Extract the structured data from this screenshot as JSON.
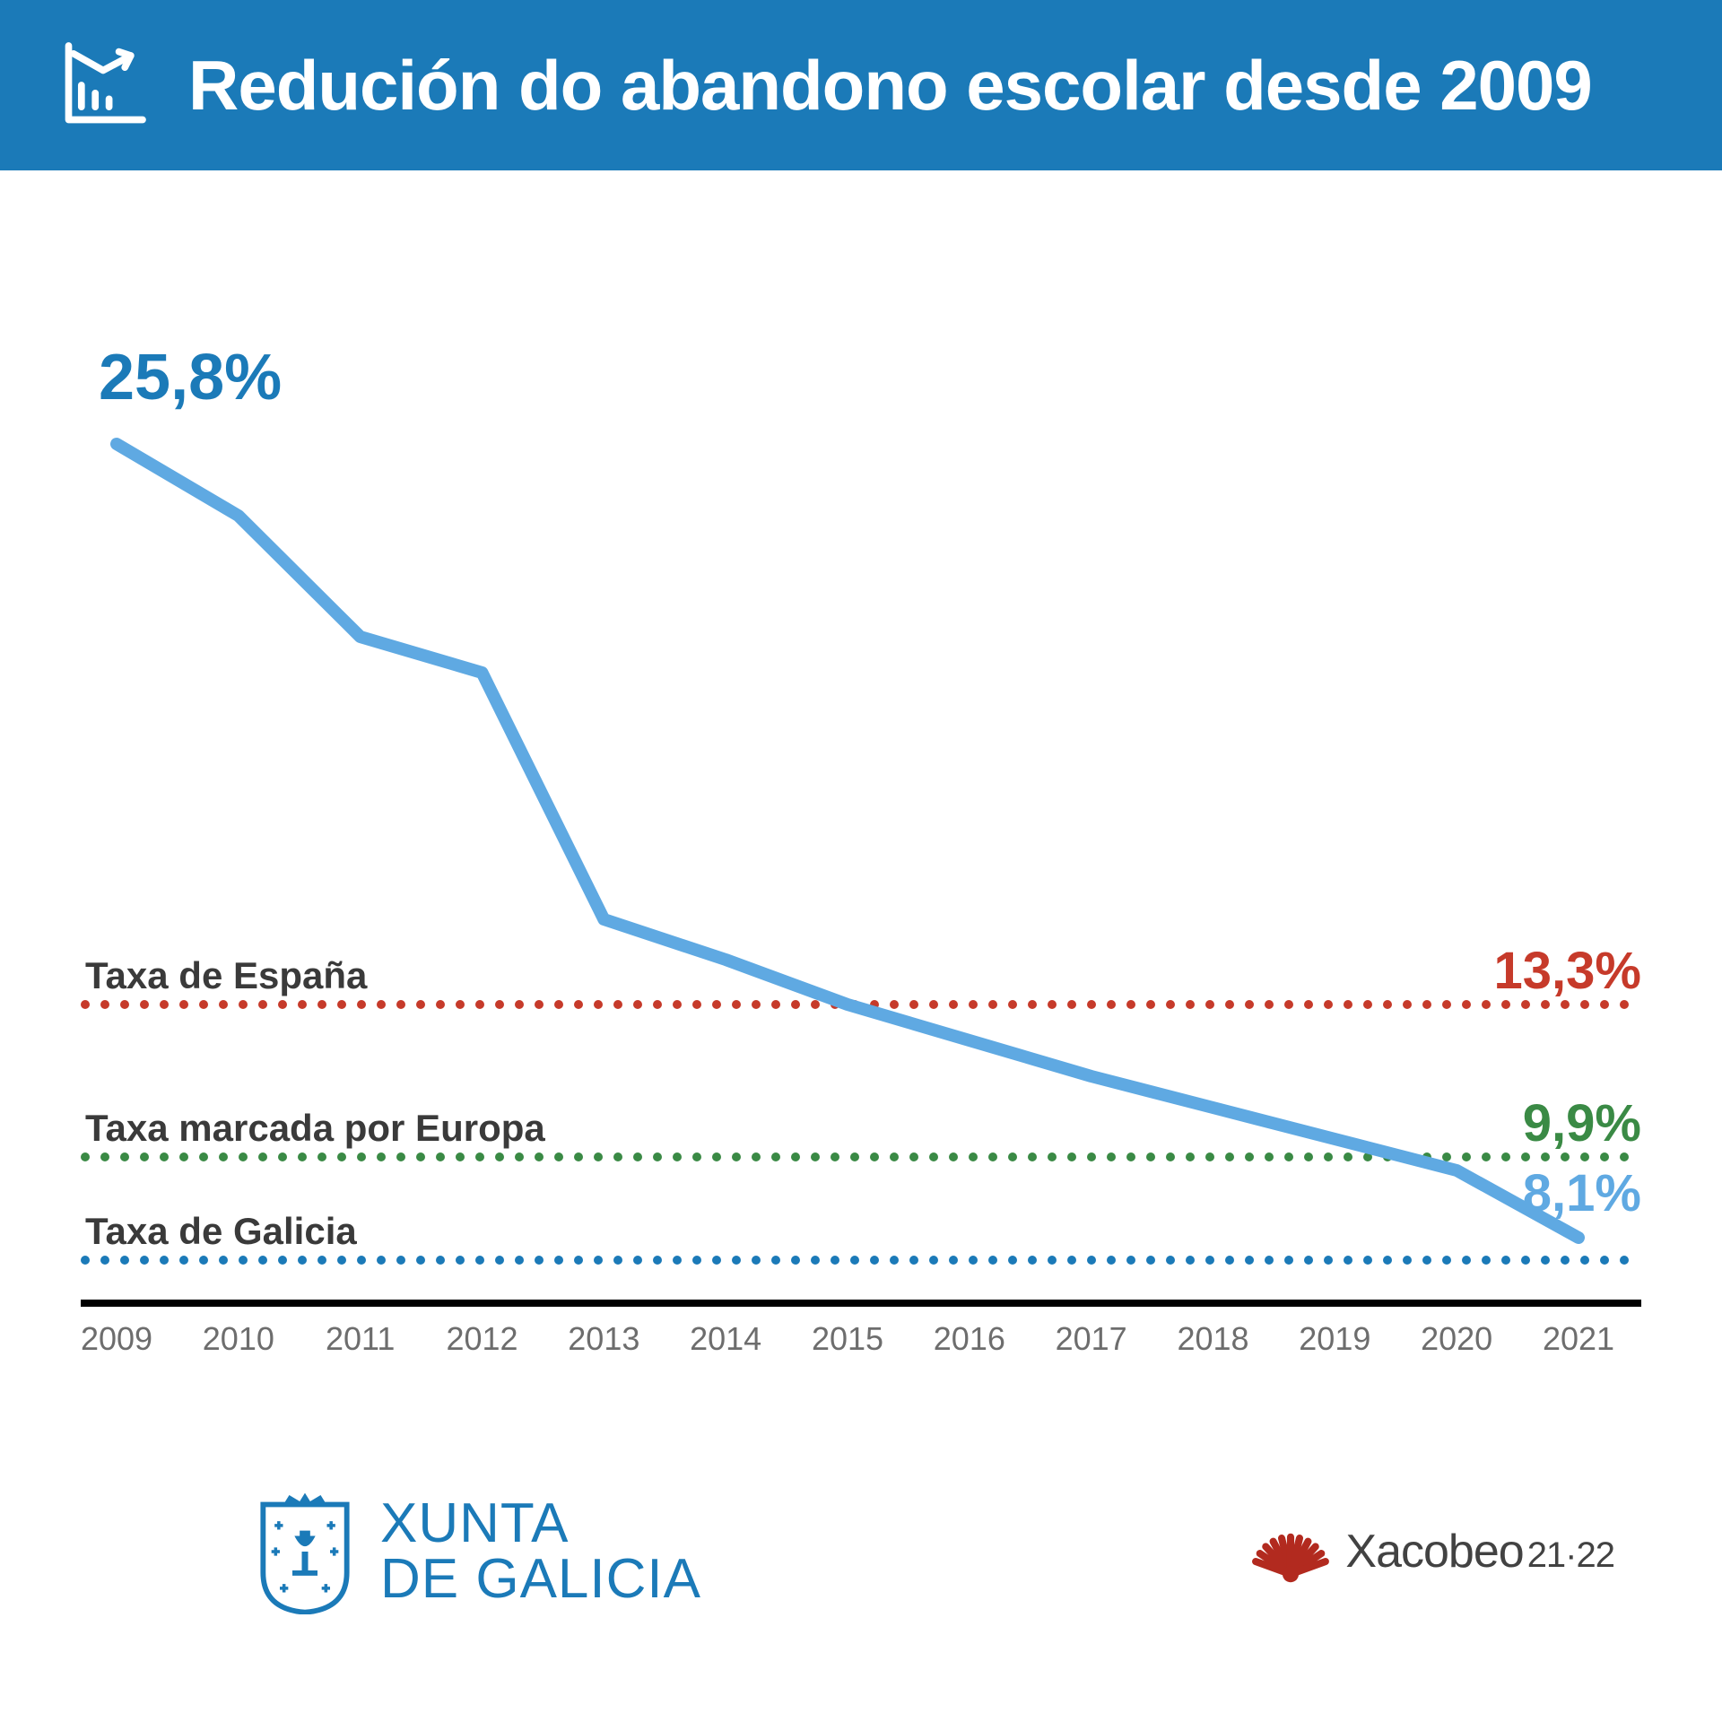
{
  "header": {
    "title": "Redución do abandono escolar desde 2009",
    "bg_color": "#1b7ab8",
    "text_color": "#ffffff",
    "icon_color": "#ffffff"
  },
  "chart": {
    "type": "line",
    "background_color": "#ffffff",
    "x_categories": [
      "2009",
      "2010",
      "2011",
      "2012",
      "2013",
      "2014",
      "2015",
      "2016",
      "2017",
      "2018",
      "2019",
      "2020",
      "2021"
    ],
    "x_label_fontsize": 36,
    "x_label_color": "#6d6d6d",
    "axis_line_color": "#000000",
    "axis_line_width": 8,
    "ylim": [
      7,
      27
    ],
    "series_line": {
      "values": [
        25.8,
        24.2,
        21.5,
        20.7,
        15.2,
        14.3,
        13.3,
        12.5,
        11.7,
        11.0,
        10.3,
        9.6,
        8.1
      ],
      "color": "#5fa9e2",
      "width": 14
    },
    "start_label": {
      "text": "25,8%",
      "color": "#1b7ab8",
      "fontsize": 72,
      "fontweight": 700
    },
    "end_label": {
      "text": "8,1%",
      "color": "#5fa9e2",
      "fontsize": 58,
      "fontweight": 700
    },
    "reference_lines": [
      {
        "label": "Taxa de España",
        "value_label": "13,3%",
        "y": 13.3,
        "color": "#c63a2a",
        "label_color": "#3a3a3a",
        "value_color": "#c63a2a",
        "label_fontsize": 42,
        "value_fontsize": 58,
        "dot_radius": 5,
        "dot_spacing": 22
      },
      {
        "label": "Taxa marcada por Europa",
        "value_label": "9,9%",
        "y": 9.9,
        "color": "#3a8a45",
        "label_color": "#3a3a3a",
        "value_color": "#3a8a45",
        "label_fontsize": 42,
        "value_fontsize": 58,
        "dot_radius": 5,
        "dot_spacing": 22
      },
      {
        "label": "Taxa de Galicia",
        "value_label": "",
        "y": 7.6,
        "color": "#1b7ab8",
        "label_color": "#3a3a3a",
        "value_color": "#1b7ab8",
        "label_fontsize": 42,
        "value_fontsize": 58,
        "dot_radius": 5,
        "dot_spacing": 22
      }
    ]
  },
  "footer": {
    "xunta": {
      "line1": "XUNTA",
      "line2": "DE GALICIA",
      "color": "#1b7ab8"
    },
    "xacobeo": {
      "text": "Xacobeo",
      "sub": "21·22",
      "shell_color": "#b22a1f",
      "text_color": "#424242"
    }
  }
}
